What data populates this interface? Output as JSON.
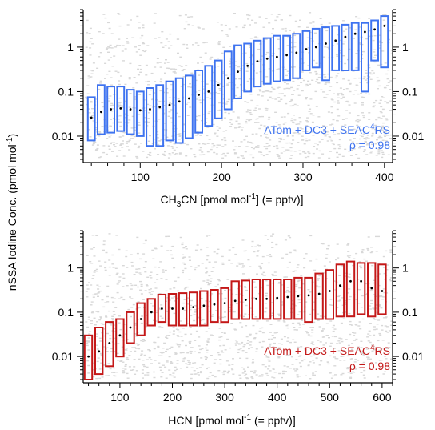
{
  "ylabel": {
    "main": "nSSA Iodine Conc. (pmol mol",
    "sup": "-1",
    "end": ")"
  },
  "colors": {
    "top": "#3e73f0",
    "bottom": "#c41818",
    "background_points": "#d8d8d8",
    "median": "#000000",
    "axis": "#000000"
  },
  "chart_data": [
    {
      "type": "box",
      "y_scale": "log",
      "ylim": [
        0.003,
        7
      ],
      "xlim": [
        30,
        410
      ],
      "xticks": [
        100,
        200,
        300,
        400
      ],
      "yticks": [
        0.01,
        0.1,
        1
      ],
      "ytick_labels": [
        "0.01",
        "0.1",
        "1"
      ],
      "xlabel": {
        "pre": "CH",
        "sub1": "3",
        "mid": "CN [pmol mol",
        "sup": "-1",
        "post": "] (= pptv)]"
      },
      "legend": {
        "pre": "ATom + DC3 + SEAC",
        "sup": "4",
        "post": "RS",
        "rho": "ρ = 0.98"
      },
      "color": "#3e73f0",
      "boxes": [
        {
          "x": 40,
          "lo": 0.008,
          "hi": 0.075,
          "median": 0.026
        },
        {
          "x": 52,
          "lo": 0.011,
          "hi": 0.14,
          "median": 0.035
        },
        {
          "x": 64,
          "lo": 0.012,
          "hi": 0.13,
          "median": 0.04
        },
        {
          "x": 76,
          "lo": 0.013,
          "hi": 0.13,
          "median": 0.042
        },
        {
          "x": 88,
          "lo": 0.011,
          "hi": 0.11,
          "median": 0.04
        },
        {
          "x": 100,
          "lo": 0.01,
          "hi": 0.1,
          "median": 0.038
        },
        {
          "x": 112,
          "lo": 0.006,
          "hi": 0.12,
          "median": 0.04
        },
        {
          "x": 124,
          "lo": 0.006,
          "hi": 0.14,
          "median": 0.045
        },
        {
          "x": 136,
          "lo": 0.008,
          "hi": 0.17,
          "median": 0.05
        },
        {
          "x": 148,
          "lo": 0.007,
          "hi": 0.2,
          "median": 0.06
        },
        {
          "x": 160,
          "lo": 0.009,
          "hi": 0.23,
          "median": 0.07
        },
        {
          "x": 172,
          "lo": 0.012,
          "hi": 0.3,
          "median": 0.085
        },
        {
          "x": 184,
          "lo": 0.017,
          "hi": 0.38,
          "median": 0.1
        },
        {
          "x": 196,
          "lo": 0.025,
          "hi": 0.5,
          "median": 0.14
        },
        {
          "x": 208,
          "lo": 0.04,
          "hi": 0.8,
          "median": 0.2
        },
        {
          "x": 220,
          "lo": 0.07,
          "hi": 1.1,
          "median": 0.28
        },
        {
          "x": 232,
          "lo": 0.1,
          "hi": 1.2,
          "median": 0.38
        },
        {
          "x": 244,
          "lo": 0.13,
          "hi": 1.4,
          "median": 0.48
        },
        {
          "x": 256,
          "lo": 0.15,
          "hi": 1.6,
          "median": 0.55
        },
        {
          "x": 268,
          "lo": 0.17,
          "hi": 1.8,
          "median": 0.6
        },
        {
          "x": 280,
          "lo": 0.18,
          "hi": 1.8,
          "median": 0.66
        },
        {
          "x": 292,
          "lo": 0.2,
          "hi": 2.0,
          "median": 0.75
        },
        {
          "x": 304,
          "lo": 0.3,
          "hi": 2.3,
          "median": 0.9
        },
        {
          "x": 316,
          "lo": 0.35,
          "hi": 2.6,
          "median": 1.0
        },
        {
          "x": 328,
          "lo": 0.18,
          "hi": 2.8,
          "median": 1.2
        },
        {
          "x": 340,
          "lo": 0.3,
          "hi": 3.0,
          "median": 1.4
        },
        {
          "x": 352,
          "lo": 0.3,
          "hi": 3.2,
          "median": 1.7
        },
        {
          "x": 364,
          "lo": 0.3,
          "hi": 3.5,
          "median": 2.0
        },
        {
          "x": 376,
          "lo": 0.1,
          "hi": 3.5,
          "median": 2.2
        },
        {
          "x": 388,
          "lo": 0.5,
          "hi": 4.0,
          "median": 2.5
        },
        {
          "x": 400,
          "lo": 0.35,
          "hi": 5.0,
          "median": 3.0
        }
      ]
    },
    {
      "type": "box",
      "y_scale": "log",
      "ylim": [
        0.003,
        7
      ],
      "xlim": [
        30,
        620
      ],
      "xticks": [
        100,
        200,
        300,
        400,
        500,
        600
      ],
      "yticks": [
        0.01,
        0.1,
        1
      ],
      "ytick_labels": [
        "0.01",
        "0.1",
        "1"
      ],
      "xlabel": {
        "pre": "HCN [pmol mol",
        "sup": "-1",
        "post": "  (= pptv)]"
      },
      "legend": {
        "pre": "ATom + DC3 + SEAC",
        "sup": "4",
        "post": "RS",
        "rho": "ρ = 0.98"
      },
      "color": "#c41818",
      "boxes": [
        {
          "x": 40,
          "lo": 0.003,
          "hi": 0.03,
          "median": 0.01
        },
        {
          "x": 60,
          "lo": 0.004,
          "hi": 0.045,
          "median": 0.013
        },
        {
          "x": 80,
          "lo": 0.006,
          "hi": 0.06,
          "median": 0.02
        },
        {
          "x": 100,
          "lo": 0.01,
          "hi": 0.07,
          "median": 0.03
        },
        {
          "x": 120,
          "lo": 0.02,
          "hi": 0.1,
          "median": 0.045
        },
        {
          "x": 140,
          "lo": 0.03,
          "hi": 0.16,
          "median": 0.07
        },
        {
          "x": 160,
          "lo": 0.05,
          "hi": 0.2,
          "median": 0.1
        },
        {
          "x": 180,
          "lo": 0.06,
          "hi": 0.25,
          "median": 0.12
        },
        {
          "x": 200,
          "lo": 0.05,
          "hi": 0.26,
          "median": 0.12
        },
        {
          "x": 220,
          "lo": 0.05,
          "hi": 0.27,
          "median": 0.12
        },
        {
          "x": 240,
          "lo": 0.05,
          "hi": 0.28,
          "median": 0.13
        },
        {
          "x": 260,
          "lo": 0.05,
          "hi": 0.3,
          "median": 0.14
        },
        {
          "x": 280,
          "lo": 0.06,
          "hi": 0.32,
          "median": 0.15
        },
        {
          "x": 300,
          "lo": 0.06,
          "hi": 0.35,
          "median": 0.16
        },
        {
          "x": 320,
          "lo": 0.07,
          "hi": 0.5,
          "median": 0.18
        },
        {
          "x": 340,
          "lo": 0.07,
          "hi": 0.52,
          "median": 0.19
        },
        {
          "x": 360,
          "lo": 0.07,
          "hi": 0.55,
          "median": 0.2
        },
        {
          "x": 380,
          "lo": 0.07,
          "hi": 0.55,
          "median": 0.2
        },
        {
          "x": 400,
          "lo": 0.07,
          "hi": 0.55,
          "median": 0.21
        },
        {
          "x": 420,
          "lo": 0.07,
          "hi": 0.55,
          "median": 0.22
        },
        {
          "x": 440,
          "lo": 0.07,
          "hi": 0.6,
          "median": 0.23
        },
        {
          "x": 460,
          "lo": 0.06,
          "hi": 0.6,
          "median": 0.24
        },
        {
          "x": 480,
          "lo": 0.07,
          "hi": 0.75,
          "median": 0.26
        },
        {
          "x": 500,
          "lo": 0.07,
          "hi": 0.9,
          "median": 0.3
        },
        {
          "x": 520,
          "lo": 0.08,
          "hi": 1.2,
          "median": 0.4
        },
        {
          "x": 540,
          "lo": 0.08,
          "hi": 1.4,
          "median": 0.5
        },
        {
          "x": 560,
          "lo": 0.09,
          "hi": 1.3,
          "median": 0.5
        },
        {
          "x": 580,
          "lo": 0.08,
          "hi": 1.3,
          "median": 0.35
        },
        {
          "x": 600,
          "lo": 0.09,
          "hi": 1.2,
          "median": 0.3
        }
      ]
    }
  ]
}
